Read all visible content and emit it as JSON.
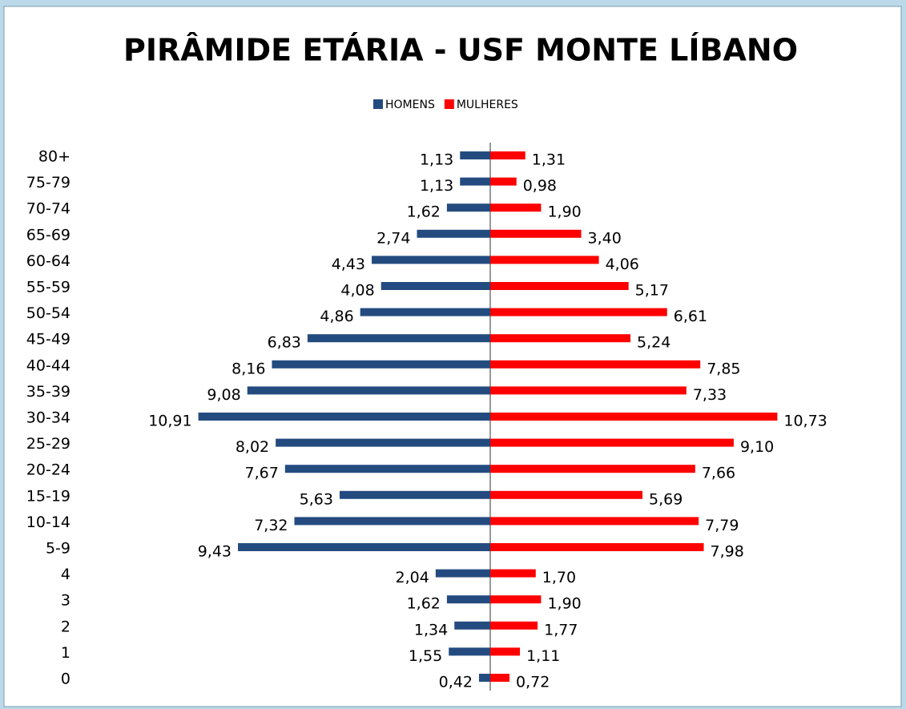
{
  "chart_data": {
    "type": "pyramid",
    "title": "PIRÂMIDE ETÁRIA - USF MONTE LÍBANO",
    "categories": [
      "80+",
      "75-79",
      "70-74",
      "65-69",
      "60-64",
      "55-59",
      "50-54",
      "45-49",
      "40-44",
      "35-39",
      "30-34",
      "25-29",
      "20-24",
      "15-19",
      "10-14",
      "5-9",
      "4",
      "3",
      "2",
      "1",
      "0"
    ],
    "series": [
      {
        "name": "HOMENS",
        "color": "#244b7f",
        "values": [
          1.13,
          1.13,
          1.62,
          2.74,
          4.43,
          4.08,
          4.86,
          6.83,
          8.16,
          9.08,
          10.91,
          8.02,
          7.67,
          5.63,
          7.32,
          9.43,
          2.04,
          1.62,
          1.34,
          1.55,
          0.42
        ],
        "value_labels": [
          "1,13",
          "1,13",
          "1,62",
          "2,74",
          "4,43",
          "4,08",
          "4,86",
          "6,83",
          "8,16",
          "9,08",
          "10,91",
          "8,02",
          "7,67",
          "5,63",
          "7,32",
          "9,43",
          "2,04",
          "1,62",
          "1,34",
          "1,55",
          "0,42"
        ]
      },
      {
        "name": "MULHERES",
        "color": "#ff0000",
        "values": [
          1.31,
          0.98,
          1.9,
          3.4,
          4.06,
          5.17,
          6.61,
          5.24,
          7.85,
          7.33,
          10.73,
          9.1,
          7.66,
          5.69,
          7.79,
          7.98,
          1.7,
          1.9,
          1.77,
          1.11,
          0.72
        ],
        "value_labels": [
          "1,31",
          "0,98",
          "1,90",
          "3,40",
          "4,06",
          "5,17",
          "6,61",
          "5,24",
          "7,85",
          "7,33",
          "10,73",
          "9,10",
          "7,66",
          "5,69",
          "7,79",
          "7,98",
          "1,70",
          "1,90",
          "1,77",
          "1,11",
          "0,72"
        ]
      }
    ],
    "legend": "top"
  }
}
